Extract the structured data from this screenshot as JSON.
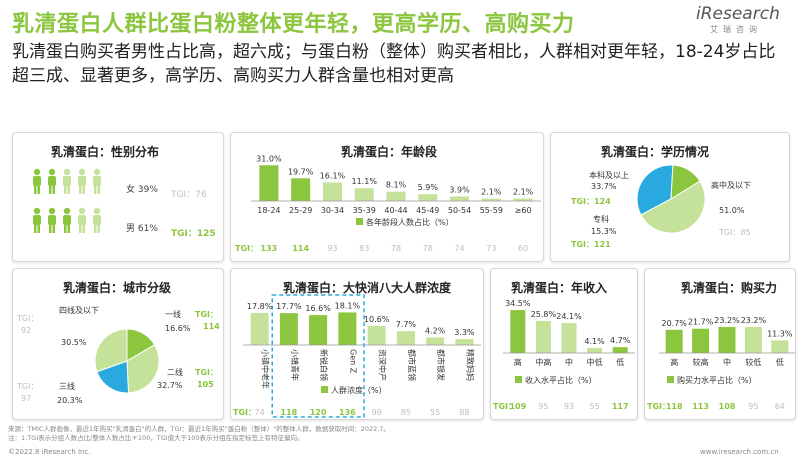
{
  "header": {
    "title": "乳清蛋白人群比蛋白粉整体更年轻，更高学历、高购买力",
    "subtitle": "乳清蛋白购买者男性占比高，超六成；与蛋白粉（整体）购买者相比，人群相对更年轻，18-24岁占比超三成、显著更多，高学历、高购买力人群含量也相对更高",
    "logo": "iResearch",
    "logo_cn": "艾瑞咨询"
  },
  "colors": {
    "accent": "#8cc63f",
    "dark": "#5a8f29",
    "light": "#c5e29a",
    "blue": "#29a9e0",
    "tgi_grey": "#bdbdbd"
  },
  "gender": {
    "title": "乳清蛋白：性别分布",
    "female_label": "女 39%",
    "female_tgi_label": "TGI：",
    "female_tgi": "76",
    "male_label": "男 61%",
    "male_tgi_label": "TGI：",
    "male_tgi": "125"
  },
  "age": {
    "title": "乳清蛋白：年龄段",
    "legend": "各年龄段人数占比（%）",
    "tgi_label": "TGI：",
    "chart_data": {
      "type": "bar",
      "categories": [
        "18-24",
        "25-29",
        "30-34",
        "35-39",
        "40-44",
        "45-49",
        "50-54",
        "55-59",
        "≥60"
      ],
      "values": [
        31.0,
        19.7,
        16.1,
        11.1,
        8.1,
        5.9,
        3.9,
        2.1,
        2.1
      ],
      "value_labels": [
        "31.0%",
        "19.7%",
        "16.1%",
        "11.1%",
        "8.1%",
        "5.9%",
        "3.9%",
        "2.1%",
        "2.1%"
      ],
      "tgi": [
        "133",
        "114",
        "93",
        "83",
        "78",
        "78",
        "74",
        "73",
        "60"
      ],
      "tgi_highlight": [
        true,
        true,
        false,
        false,
        false,
        false,
        false,
        false,
        false
      ],
      "ylim": [
        0,
        33
      ]
    }
  },
  "education": {
    "title": "乳清蛋白：学历情况",
    "tgi_label": "TGI：",
    "chart_data": {
      "type": "pie",
      "slices": [
        {
          "name": "本科及以上",
          "value": 33.7,
          "label": "33.7%",
          "tgi": "124",
          "highlight": true
        },
        {
          "name": "专科",
          "value": 15.3,
          "label": "15.3%",
          "tgi": "121",
          "highlight": true
        },
        {
          "name": "高中及以下",
          "value": 51.0,
          "label": "51.0%",
          "tgi": "85",
          "highlight": false
        }
      ]
    }
  },
  "city": {
    "title": "乳清蛋白：城市分级",
    "tgi_label": "TGI：",
    "chart_data": {
      "type": "pie",
      "slices": [
        {
          "name": "一线",
          "value": 16.6,
          "label": "16.6%",
          "tgi": "114",
          "highlight": true
        },
        {
          "name": "二线",
          "value": 32.7,
          "label": "32.7%",
          "tgi": "105",
          "highlight": true
        },
        {
          "name": "三线",
          "value": 20.3,
          "label": "20.3%",
          "tgi": "97",
          "highlight": false
        },
        {
          "name": "四线及以下",
          "value": 30.5,
          "label": "30.5%",
          "tgi": "92",
          "highlight": false
        }
      ]
    }
  },
  "consumer": {
    "title": "乳清蛋白：大快消八大人群浓度",
    "legend": "人群浓度（%）",
    "tgi_label": "TGI：",
    "chart_data": {
      "type": "bar",
      "categories": [
        "小镇中老年",
        "小镇青年",
        "新锐白领",
        "Gen Z",
        "资深中产",
        "都市蓝领",
        "都市银发",
        "精致妈妈"
      ],
      "values": [
        17.8,
        17.7,
        16.6,
        18.1,
        10.6,
        7.7,
        4.2,
        3.3
      ],
      "value_labels": [
        "17.8%",
        "17.7%",
        "16.6%",
        "18.1%",
        "10.6%",
        "7.7%",
        "4.2%",
        "3.3%"
      ],
      "tgi": [
        "74",
        "118",
        "120",
        "136",
        "99",
        "85",
        "55",
        "88"
      ],
      "tgi_highlight": [
        false,
        true,
        true,
        true,
        false,
        false,
        false,
        false
      ],
      "ylim": [
        0,
        20
      ]
    }
  },
  "income": {
    "title": "乳清蛋白：年收入",
    "legend": "收入水平占比（%）",
    "tgi_label": "TGI：",
    "chart_data": {
      "type": "bar",
      "categories": [
        "高",
        "中高",
        "中",
        "中低",
        "低"
      ],
      "values": [
        34.5,
        25.8,
        24.1,
        4.1,
        4.7
      ],
      "value_labels": [
        "34.5%",
        "25.8%",
        "24.1%",
        "4.1%",
        "4.7%"
      ],
      "tgi": [
        "109",
        "95",
        "93",
        "55",
        "117"
      ],
      "tgi_highlight": [
        true,
        false,
        false,
        false,
        true
      ],
      "ylim": [
        0,
        37
      ]
    }
  },
  "purchase": {
    "title": "乳清蛋白：购买力",
    "legend": "购买力水平占比（%）",
    "tgi_label": "TGI：",
    "chart_data": {
      "type": "bar",
      "categories": [
        "高",
        "较高",
        "中",
        "较低",
        "低"
      ],
      "values": [
        20.7,
        21.7,
        23.2,
        23.2,
        11.3
      ],
      "value_labels": [
        "20.7%",
        "21.7%",
        "23.2%",
        "23.2%",
        "11.3%"
      ],
      "tgi": [
        "118",
        "113",
        "108",
        "95",
        "64"
      ],
      "tgi_highlight": [
        true,
        true,
        true,
        false,
        false
      ],
      "ylim": [
        0,
        25
      ]
    }
  },
  "footer": {
    "source": "来源：TMIC人群画像，最近1年购买\"乳清蛋白\"的人群，TGI：最近1年购买\"蛋白粉（整体）\"的整体人群，数据获取时间：2022.7。",
    "note": "注：1.TGI表示分组人数占比/整体人数占比＊100，TGI值大于100表示分组在指定标签上有特征偏向。",
    "copyright": "©2022.8 iResearch Inc.",
    "site": "www.iresearch.com.cn"
  }
}
